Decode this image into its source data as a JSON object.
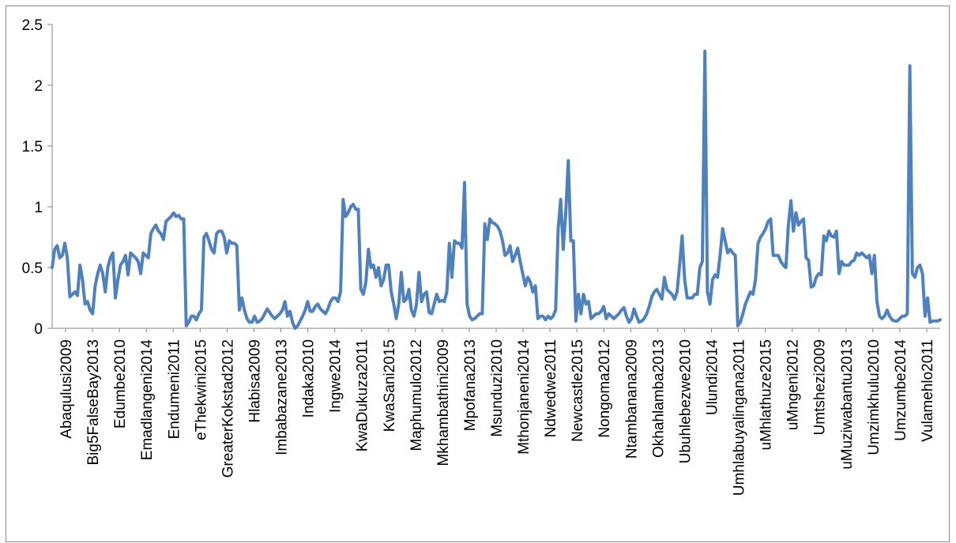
{
  "chart_data": {
    "type": "line",
    "title": "",
    "xlabel": "",
    "ylabel": "",
    "ylim": [
      0,
      2.5
    ],
    "yticks": [
      "0",
      "0.5",
      "1",
      "1.5",
      "2",
      "2.5"
    ],
    "grid": false,
    "legend": "none",
    "line_color": "#4F81BD",
    "category_labels": [
      "Abaqulusi2009",
      "Big5FalseBay2013",
      "Edumbe2010",
      "Emadlangeni2014",
      "Endumeni2011",
      "eThekwini2015",
      "GreaterKokstad2012",
      "Hlabisa2009",
      "Imbabazane2013",
      "Indaka2010",
      "Ingwe2014",
      "KwaDukuza2011",
      "KwaSani2015",
      "Maphumulo2012",
      "Mkhambathini2009",
      "Mpofana2013",
      "Msunduzi2010",
      "Mthonjaneni2014",
      "Ndwedwe2011",
      "Newcastle2015",
      "Nongoma2012",
      "Ntambanana2009",
      "Okhahlamba2013",
      "Ubuhlebezwe2010",
      "Ulundi2014",
      "Umhlabuyalingana2011",
      "uMhlathuze2015",
      "uMngeni2012",
      "Umtshezi2009",
      "uMuziwabantu2013",
      "Umzimkhulu2010",
      "Umzumbe2014",
      "Vulamehlo2011"
    ],
    "series": [
      {
        "values": [
          0.5,
          0.65,
          0.68,
          0.58,
          0.6,
          0.7,
          0.58,
          0.26,
          0.28,
          0.3,
          0.27,
          0.52,
          0.4,
          0.2,
          0.22,
          0.15,
          0.12,
          0.35,
          0.45,
          0.52,
          0.45,
          0.3,
          0.5,
          0.58,
          0.62,
          0.25,
          0.4,
          0.52,
          0.55,
          0.6,
          0.44,
          0.62,
          0.6,
          0.58,
          0.55,
          0.45,
          0.62,
          0.6,
          0.58,
          0.78,
          0.82,
          0.85,
          0.8,
          0.78,
          0.73,
          0.88,
          0.9,
          0.92,
          0.95,
          0.92,
          0.93,
          0.9,
          0.9,
          0.02,
          0.05,
          0.1,
          0.1,
          0.07,
          0.12,
          0.15,
          0.75,
          0.78,
          0.72,
          0.65,
          0.62,
          0.78,
          0.8,
          0.8,
          0.75,
          0.62,
          0.72,
          0.7,
          0.7,
          0.68,
          0.15,
          0.25,
          0.15,
          0.08,
          0.05,
          0.05,
          0.1,
          0.05,
          0.06,
          0.08,
          0.12,
          0.16,
          0.13,
          0.1,
          0.08,
          0.1,
          0.12,
          0.15,
          0.22,
          0.1,
          0.14,
          0.05,
          0.0,
          0.02,
          0.06,
          0.1,
          0.15,
          0.22,
          0.14,
          0.14,
          0.18,
          0.2,
          0.16,
          0.14,
          0.12,
          0.16,
          0.22,
          0.25,
          0.25,
          0.22,
          0.3,
          1.06,
          0.92,
          0.95,
          1.0,
          1.02,
          0.98,
          0.98,
          0.32,
          0.28,
          0.38,
          0.65,
          0.5,
          0.52,
          0.42,
          0.5,
          0.35,
          0.4,
          0.52,
          0.52,
          0.3,
          0.2,
          0.08,
          0.2,
          0.46,
          0.22,
          0.24,
          0.32,
          0.15,
          0.1,
          0.2,
          0.46,
          0.22,
          0.28,
          0.3,
          0.13,
          0.12,
          0.2,
          0.28,
          0.22,
          0.23,
          0.22,
          0.3,
          0.7,
          0.42,
          0.72,
          0.7,
          0.7,
          0.66,
          1.2,
          0.2,
          0.1,
          0.07,
          0.08,
          0.1,
          0.12,
          0.12,
          0.86,
          0.73,
          0.9,
          0.87,
          0.86,
          0.84,
          0.8,
          0.72,
          0.6,
          0.62,
          0.68,
          0.55,
          0.6,
          0.66,
          0.55,
          0.45,
          0.35,
          0.42,
          0.38,
          0.3,
          0.35,
          0.08,
          0.1,
          0.1,
          0.07,
          0.1,
          0.08,
          0.1,
          0.15,
          0.82,
          1.06,
          0.65,
          0.95,
          1.38,
          0.72,
          0.72,
          0.06,
          0.28,
          0.12,
          0.28,
          0.2,
          0.22,
          0.08,
          0.1,
          0.12,
          0.12,
          0.14,
          0.18,
          0.08,
          0.12,
          0.1,
          0.08,
          0.1,
          0.12,
          0.15,
          0.17,
          0.1,
          0.05,
          0.08,
          0.16,
          0.1,
          0.05,
          0.06,
          0.08,
          0.12,
          0.18,
          0.26,
          0.3,
          0.32,
          0.28,
          0.24,
          0.42,
          0.32,
          0.3,
          0.28,
          0.24,
          0.3,
          0.52,
          0.76,
          0.4,
          0.25,
          0.25,
          0.25,
          0.28,
          0.28,
          0.5,
          0.55,
          2.28,
          0.3,
          0.2,
          0.4,
          0.44,
          0.42,
          0.6,
          0.82,
          0.72,
          0.62,
          0.65,
          0.62,
          0.6,
          0.02,
          0.05,
          0.12,
          0.2,
          0.25,
          0.3,
          0.28,
          0.4,
          0.7,
          0.75,
          0.78,
          0.82,
          0.88,
          0.9,
          0.6,
          0.6,
          0.6,
          0.55,
          0.52,
          0.5,
          0.85,
          1.05,
          0.8,
          0.95,
          0.85,
          0.88,
          0.9,
          0.58,
          0.56,
          0.34,
          0.35,
          0.42,
          0.45,
          0.44,
          0.76,
          0.72,
          0.8,
          0.76,
          0.75,
          0.8,
          0.45,
          0.55,
          0.52,
          0.52,
          0.52,
          0.55,
          0.56,
          0.62,
          0.6,
          0.62,
          0.6,
          0.58,
          0.6,
          0.45,
          0.6,
          0.22,
          0.1,
          0.08,
          0.1,
          0.15,
          0.1,
          0.07,
          0.06,
          0.06,
          0.08,
          0.1,
          0.1,
          0.12,
          2.16,
          0.45,
          0.42,
          0.5,
          0.52,
          0.45,
          0.1,
          0.25,
          0.05,
          0.06,
          0.06,
          0.06,
          0.07
        ]
      }
    ]
  }
}
